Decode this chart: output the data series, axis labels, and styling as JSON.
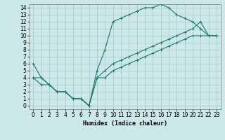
{
  "xlabel": "Humidex (Indice chaleur)",
  "bg_color": "#cce8e8",
  "grid_color": "#aacccc",
  "line_color": "#1a7a6a",
  "xlim": [
    -0.5,
    23.5
  ],
  "ylim": [
    -0.5,
    14.5
  ],
  "xticks": [
    0,
    1,
    2,
    3,
    4,
    5,
    6,
    7,
    8,
    9,
    10,
    11,
    12,
    13,
    14,
    15,
    16,
    17,
    18,
    19,
    20,
    21,
    22,
    23
  ],
  "yticks": [
    0,
    1,
    2,
    3,
    4,
    5,
    6,
    7,
    8,
    9,
    10,
    11,
    12,
    13,
    14
  ],
  "series1_x": [
    0,
    1,
    2,
    3,
    4,
    5,
    6,
    7,
    8,
    9,
    10,
    11,
    12,
    13,
    14,
    15,
    16,
    17,
    18,
    19,
    20,
    21,
    22,
    23
  ],
  "series1_y": [
    6,
    4,
    3,
    2,
    2,
    1,
    1,
    0,
    5,
    8,
    12,
    12.5,
    13,
    13.5,
    14,
    14,
    14.5,
    14,
    13,
    12.5,
    12,
    11,
    10,
    10
  ],
  "series2_x": [
    0,
    1,
    2,
    3,
    4,
    5,
    6,
    7,
    8,
    9,
    10,
    11,
    12,
    13,
    14,
    15,
    16,
    17,
    18,
    19,
    20,
    21,
    22,
    23
  ],
  "series2_y": [
    4,
    4,
    3,
    2,
    2,
    1,
    1,
    0,
    4,
    5,
    6,
    6.5,
    7,
    7.5,
    8,
    8.5,
    9,
    9.5,
    10,
    10.5,
    11,
    12,
    10,
    10
  ],
  "series3_x": [
    0,
    1,
    2,
    3,
    4,
    5,
    6,
    7,
    8,
    9,
    10,
    11,
    12,
    13,
    14,
    15,
    16,
    17,
    18,
    19,
    20,
    21,
    22,
    23
  ],
  "series3_y": [
    4,
    3,
    3,
    2,
    2,
    1,
    1,
    0,
    4,
    4,
    5,
    5.5,
    6,
    6.5,
    7,
    7.5,
    8,
    8.5,
    9,
    9.5,
    10,
    10,
    10,
    10
  ],
  "tick_fontsize": 5.5,
  "xlabel_fontsize": 6.0
}
